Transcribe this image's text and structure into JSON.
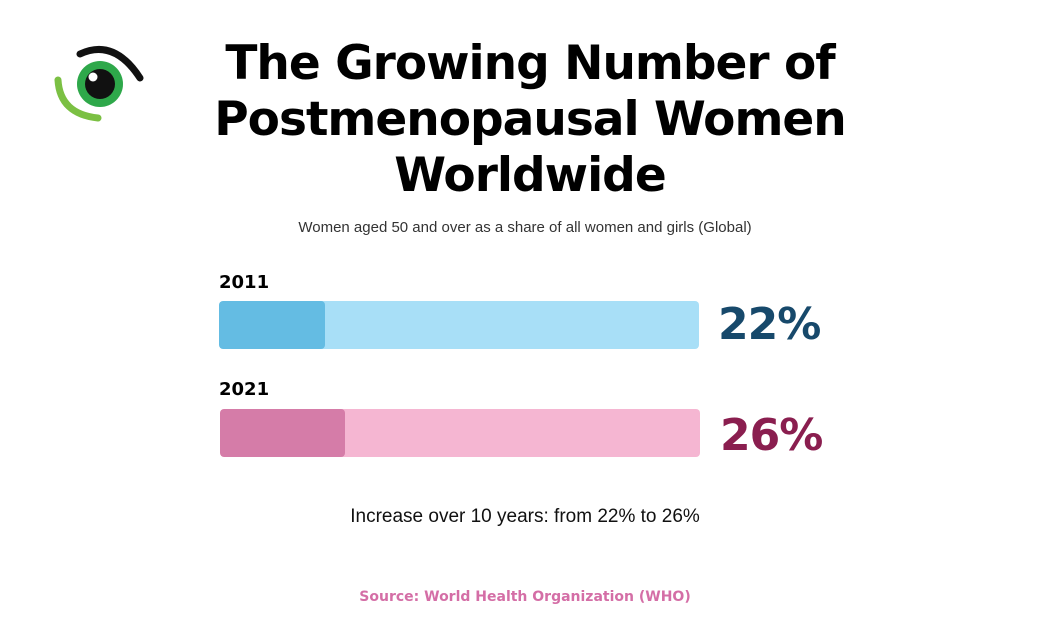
{
  "title": "The Growing Number of Postmenopausal Women Worldwide",
  "subtitle": "Women aged 50 and over as a share of all women and girls (Global)",
  "note": "Increase over 10 years: from 22% to 26%",
  "source": "Source: World Health Organization (WHO)",
  "logo_icon": "eye-icon",
  "colors": {
    "source": "#d46ea6",
    "series_2011_fill": "#64bce3",
    "series_2011_track": "#a8dff7",
    "series_2011_text": "#17496b",
    "series_2021_fill": "#d57ca8",
    "series_2021_track": "#f5b6d2",
    "series_2021_text": "#8a1e4f"
  },
  "chart_data": {
    "type": "bar",
    "orientation": "horizontal",
    "categories": [
      "2011",
      "2021"
    ],
    "values": [
      22,
      26
    ],
    "value_labels": [
      "22%",
      "26%"
    ],
    "xlim": [
      0,
      100
    ],
    "grid": false
  }
}
